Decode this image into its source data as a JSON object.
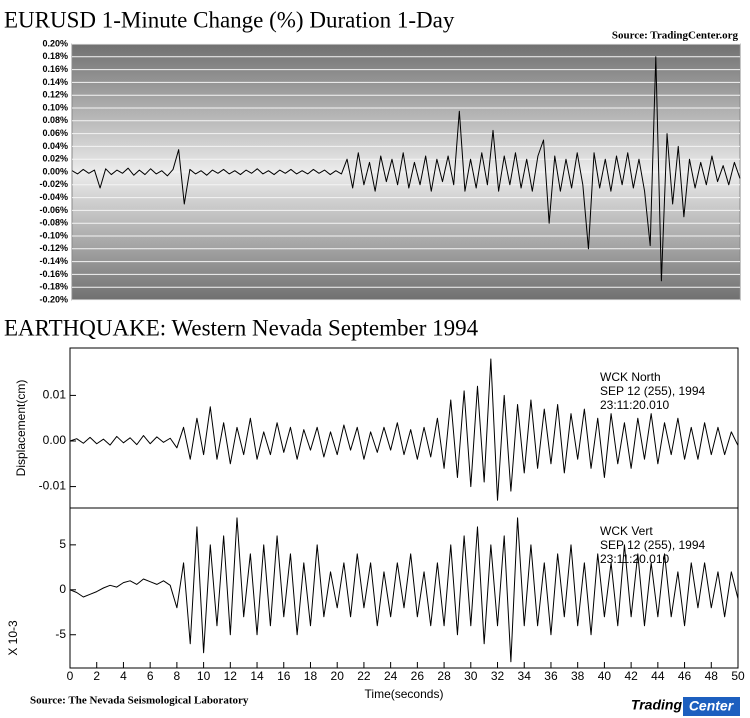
{
  "chart_data": [
    {
      "type": "line",
      "title": "EURUSD 1-Minute Change (%) Duration 1-Day",
      "source": "Source: TradingCenter.org",
      "color": "#000000",
      "grid": true,
      "ylim": [
        -0.2,
        0.2
      ],
      "yticks": [
        {
          "value": 0.2,
          "label": "0.20%"
        },
        {
          "value": 0.18,
          "label": "0.18%"
        },
        {
          "value": 0.16,
          "label": "0.16%"
        },
        {
          "value": 0.14,
          "label": "0.14%"
        },
        {
          "value": 0.12,
          "label": "0.12%"
        },
        {
          "value": 0.1,
          "label": "0.10%"
        },
        {
          "value": 0.08,
          "label": "0.08%"
        },
        {
          "value": 0.06,
          "label": "0.06%"
        },
        {
          "value": 0.04,
          "label": "0.04%"
        },
        {
          "value": 0.02,
          "label": "0.02%"
        },
        {
          "value": 0,
          "label": "0.00%"
        },
        {
          "value": -0.02,
          "label": "-0.02%"
        },
        {
          "value": -0.04,
          "label": "-0.04%"
        },
        {
          "value": -0.06,
          "label": "-0.06%"
        },
        {
          "value": -0.08,
          "label": "-0.08%"
        },
        {
          "value": -0.1,
          "label": "-0.10%"
        },
        {
          "value": -0.12,
          "label": "-0.12%"
        },
        {
          "value": -0.14,
          "label": "-0.14%"
        },
        {
          "value": -0.16,
          "label": "-0.16%"
        },
        {
          "value": -0.18,
          "label": "-0.18%"
        },
        {
          "value": -0.2,
          "label": "-0.20%"
        }
      ],
      "values": [
        0.002,
        -0.003,
        0.004,
        -0.002,
        0.003,
        -0.025,
        0.005,
        -0.004,
        0.003,
        -0.002,
        0.006,
        -0.005,
        0.003,
        -0.004,
        0.005,
        -0.003,
        0.002,
        -0.006,
        0.004,
        0.035,
        -0.05,
        0.004,
        -0.003,
        0.002,
        -0.005,
        0.003,
        -0.002,
        0.004,
        -0.003,
        0.002,
        -0.004,
        0.003,
        -0.002,
        0.005,
        -0.003,
        0.002,
        -0.004,
        0.003,
        -0.002,
        0.004,
        -0.003,
        0.002,
        -0.003,
        0.004,
        -0.002,
        0.003,
        -0.004,
        0.002,
        -0.003,
        0.02,
        -0.025,
        0.03,
        -0.02,
        0.015,
        -0.03,
        0.025,
        -0.015,
        0.02,
        -0.02,
        0.03,
        -0.025,
        0.015,
        -0.02,
        0.025,
        -0.03,
        0.02,
        -0.015,
        0.025,
        -0.02,
        0.095,
        -0.03,
        0.02,
        -0.025,
        0.03,
        -0.02,
        0.065,
        -0.03,
        0.025,
        -0.02,
        0.03,
        -0.025,
        0.02,
        -0.03,
        0.025,
        0.05,
        -0.08,
        0.025,
        -0.03,
        0.02,
        -0.025,
        0.03,
        -0.02,
        -0.12,
        0.03,
        -0.025,
        0.02,
        -0.03,
        0.025,
        -0.02,
        0.03,
        -0.025,
        0.02,
        -0.03,
        -0.115,
        0.18,
        -0.17,
        0.06,
        -0.05,
        0.04,
        -0.07,
        0.02,
        -0.025,
        0.015,
        -0.02,
        0.025,
        -0.015,
        0.01,
        -0.02,
        0.015,
        -0.01
      ]
    },
    {
      "type": "line",
      "title": "EARTHQUAKE: Western Nevada September 1994",
      "ylabel": "Displacement(cm)",
      "color": "#000000",
      "annotations": [
        "WCK   North",
        "SEP 12 (255), 1994",
        "23:11:20.010"
      ],
      "xlim": [
        0,
        50
      ],
      "ylim": [
        -0.0147,
        0.0204
      ],
      "yticks": [
        0.01,
        {
          "value": 0,
          "label": "0.00"
        },
        -0.01
      ],
      "x": [
        0,
        0.5,
        1,
        1.5,
        2,
        2.5,
        3,
        3.5,
        4,
        4.5,
        5,
        5.5,
        6,
        6.5,
        7,
        7.5,
        8,
        8.5,
        9,
        9.5,
        10,
        10.5,
        11,
        11.5,
        12,
        12.5,
        13,
        13.5,
        14,
        14.5,
        15,
        15.5,
        16,
        16.5,
        17,
        17.5,
        18,
        18.5,
        19,
        19.5,
        20,
        20.5,
        21,
        21.5,
        22,
        22.5,
        23,
        23.5,
        24,
        24.5,
        25,
        25.5,
        26,
        26.5,
        27,
        27.5,
        28,
        28.5,
        29,
        29.5,
        30,
        30.5,
        31,
        31.5,
        32,
        32.5,
        33,
        33.5,
        34,
        34.5,
        35,
        35.5,
        36,
        36.5,
        37,
        37.5,
        38,
        38.5,
        39,
        39.5,
        40,
        40.5,
        41,
        41.5,
        42,
        42.5,
        43,
        43.5,
        44,
        44.5,
        45,
        45.5,
        46,
        46.5,
        47,
        47.5,
        48,
        48.5,
        49,
        49.5,
        50
      ],
      "values": [
        0,
        0.0005,
        -0.0005,
        0.0008,
        -0.0006,
        0.0004,
        -0.0009,
        0.001,
        -0.0004,
        0.0007,
        -0.0008,
        0.0012,
        -0.0006,
        0.0009,
        -0.0003,
        0.0006,
        -0.0015,
        0.003,
        -0.004,
        0.005,
        -0.003,
        0.0075,
        -0.004,
        0.004,
        -0.005,
        0.003,
        -0.003,
        0.005,
        -0.004,
        0.002,
        -0.003,
        0.004,
        -0.0025,
        0.003,
        -0.004,
        0.0025,
        -0.002,
        0.003,
        -0.0035,
        0.002,
        -0.003,
        0.0035,
        -0.002,
        0.003,
        -0.004,
        0.002,
        -0.0025,
        0.003,
        -0.002,
        0.004,
        -0.003,
        0.0025,
        -0.004,
        0.003,
        -0.0035,
        0.005,
        -0.006,
        0.009,
        -0.008,
        0.011,
        -0.01,
        0.012,
        -0.009,
        0.018,
        -0.013,
        0.01,
        -0.011,
        0.008,
        -0.007,
        0.009,
        -0.006,
        0.007,
        -0.005,
        0.008,
        -0.007,
        0.006,
        -0.004,
        0.007,
        -0.006,
        0.005,
        -0.008,
        0.006,
        -0.005,
        0.004,
        -0.006,
        0.005,
        -0.004,
        0.006,
        -0.005,
        0.004,
        -0.003,
        0.005,
        -0.004,
        0.003,
        -0.004,
        0.004,
        -0.003,
        0.003,
        -0.003,
        0.002,
        -0.001
      ]
    },
    {
      "type": "line",
      "ylabel": "X 10-3",
      "xlabel": "Time(seconds)",
      "source": "Source: The Nevada Seismological Laboratory",
      "color": "#000000",
      "annotations": [
        "WCK   Vert",
        "SEP 12 (255), 1994",
        "23:11:20.010"
      ],
      "xlim": [
        0,
        50
      ],
      "ylim": [
        -8.7,
        9.1
      ],
      "xticks": [
        0,
        2,
        4,
        6,
        8,
        10,
        12,
        14,
        16,
        18,
        20,
        22,
        24,
        26,
        28,
        30,
        32,
        34,
        36,
        38,
        40,
        42,
        44,
        46,
        48,
        50
      ],
      "yticks": [
        5,
        0,
        -5
      ],
      "x": [
        0,
        0.5,
        1,
        1.5,
        2,
        2.5,
        3,
        3.5,
        4,
        4.5,
        5,
        5.5,
        6,
        6.5,
        7,
        7.5,
        8,
        8.5,
        9,
        9.5,
        10,
        10.5,
        11,
        11.5,
        12,
        12.5,
        13,
        13.5,
        14,
        14.5,
        15,
        15.5,
        16,
        16.5,
        17,
        17.5,
        18,
        18.5,
        19,
        19.5,
        20,
        20.5,
        21,
        21.5,
        22,
        22.5,
        23,
        23.5,
        24,
        24.5,
        25,
        25.5,
        26,
        26.5,
        27,
        27.5,
        28,
        28.5,
        29,
        29.5,
        30,
        30.5,
        31,
        31.5,
        32,
        32.5,
        33,
        33.5,
        34,
        34.5,
        35,
        35.5,
        36,
        36.5,
        37,
        37.5,
        38,
        38.5,
        39,
        39.5,
        40,
        40.5,
        41,
        41.5,
        42,
        42.5,
        43,
        43.5,
        44,
        44.5,
        45,
        45.5,
        46,
        46.5,
        47,
        47.5,
        48,
        48.5,
        49,
        49.5,
        50
      ],
      "values": [
        0,
        -0.3,
        -0.8,
        -0.5,
        -0.2,
        0.2,
        0.5,
        0.3,
        0.8,
        1,
        0.6,
        1.2,
        0.9,
        0.6,
        1,
        0.5,
        -2,
        3,
        -6,
        7,
        -7,
        5,
        -4,
        6,
        -5,
        8,
        -3,
        4,
        -5,
        5,
        -4,
        6,
        -3,
        4,
        -5,
        3,
        -4,
        5,
        -3,
        2,
        -2,
        3,
        -3,
        4,
        -2,
        3,
        -4,
        2,
        -3,
        3,
        -2,
        4,
        -3,
        2,
        -4,
        3,
        -4,
        5,
        -5,
        6,
        -4,
        7,
        -6,
        5,
        -4,
        6,
        -8,
        8,
        -4,
        5,
        -4,
        3,
        -5,
        4,
        -3,
        5,
        -4,
        3,
        -5,
        4,
        -3,
        3,
        -4,
        5,
        -3,
        4,
        -4,
        3,
        -3,
        4,
        -3,
        2,
        -4,
        3,
        -2,
        3,
        -2,
        2,
        -3,
        2,
        -1
      ]
    }
  ],
  "logo": {
    "left": "Trading",
    "right": "Center"
  }
}
